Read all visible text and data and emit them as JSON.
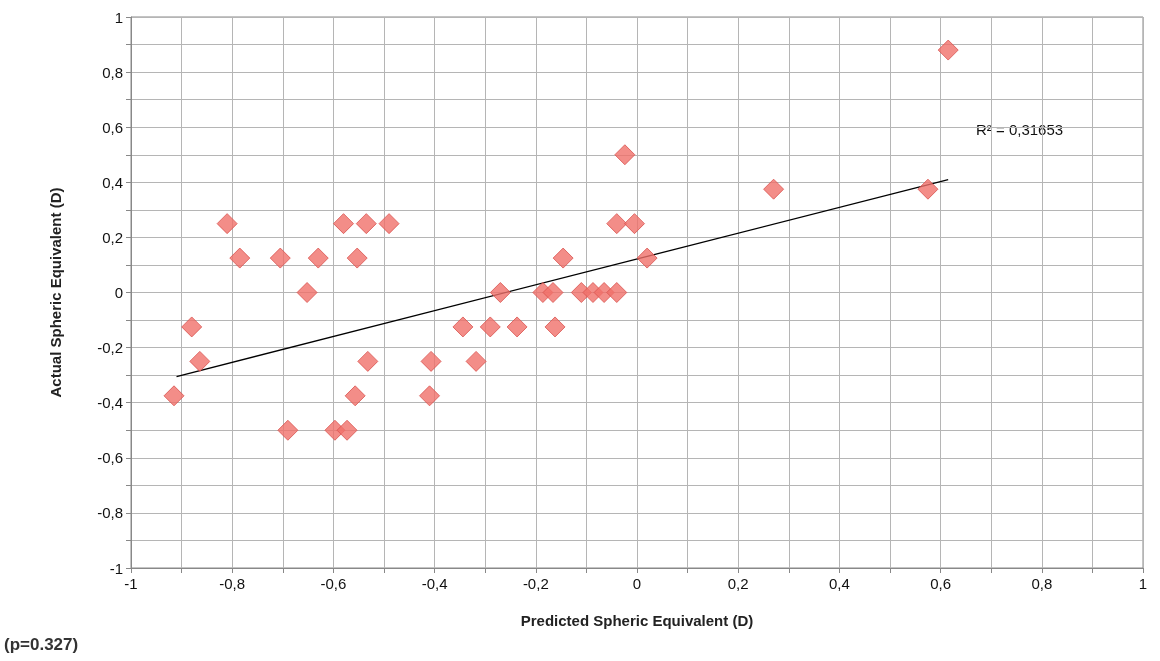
{
  "chart_data": {
    "type": "scatter",
    "xlabel": "Predicted Spheric Equivalent (D)",
    "ylabel": "Actual Spheric Equivalent (D)",
    "xlim": [
      -1,
      1
    ],
    "ylim": [
      -1,
      1
    ],
    "xticks": [
      -1,
      {
        "value": -0.9,
        "label": null
      },
      {
        "value": -0.8,
        "label": "-0,8"
      },
      {
        "value": -0.7,
        "label": null
      },
      {
        "value": -0.6,
        "label": "-0,6"
      },
      {
        "value": -0.5,
        "label": null
      },
      {
        "value": -0.4,
        "label": "-0,4"
      },
      {
        "value": -0.3,
        "label": null
      },
      {
        "value": -0.2,
        "label": "-0,2"
      },
      {
        "value": -0.1,
        "label": null
      },
      0,
      {
        "value": 0.1,
        "label": null
      },
      {
        "value": 0.2,
        "label": "0,2"
      },
      {
        "value": 0.3,
        "label": null
      },
      {
        "value": 0.4,
        "label": "0,4"
      },
      {
        "value": 0.5,
        "label": null
      },
      {
        "value": 0.6,
        "label": "0,6"
      },
      {
        "value": 0.7,
        "label": null
      },
      {
        "value": 0.8,
        "label": "0,8"
      },
      {
        "value": 0.9,
        "label": null
      },
      1
    ],
    "yticks": [
      -1,
      {
        "value": -0.9,
        "label": null
      },
      {
        "value": -0.8,
        "label": "-0,8"
      },
      {
        "value": -0.7,
        "label": null
      },
      {
        "value": -0.6,
        "label": "-0,6"
      },
      {
        "value": -0.5,
        "label": null
      },
      {
        "value": -0.4,
        "label": "-0,4"
      },
      {
        "value": -0.3,
        "label": null
      },
      {
        "value": -0.2,
        "label": "-0,2"
      },
      {
        "value": -0.1,
        "label": null
      },
      0,
      {
        "value": 0.1,
        "label": null
      },
      {
        "value": 0.2,
        "label": "0,2"
      },
      {
        "value": 0.3,
        "label": null
      },
      {
        "value": 0.4,
        "label": "0,4"
      },
      {
        "value": 0.5,
        "label": null
      },
      {
        "value": 0.6,
        "label": "0,6"
      },
      {
        "value": 0.7,
        "label": null
      },
      {
        "value": 0.8,
        "label": "0,8"
      },
      {
        "value": 0.9,
        "label": null
      },
      1
    ],
    "grid": true,
    "marker": "diamond",
    "series": [
      {
        "color": "#f0706a",
        "x": [
          0.615,
          -0.024,
          0.27,
          0.575,
          -0.81,
          -0.58,
          -0.535,
          -0.49,
          -0.04,
          -0.005,
          -0.785,
          -0.705,
          -0.63,
          -0.553,
          -0.146,
          0.02,
          -0.652,
          -0.27,
          -0.186,
          -0.166,
          -0.11,
          -0.087,
          -0.065,
          -0.04,
          -0.88,
          -0.344,
          -0.29,
          -0.237,
          -0.162,
          -0.864,
          -0.532,
          -0.407,
          -0.318,
          -0.915,
          -0.557,
          -0.41,
          -0.69,
          -0.597,
          -0.573
        ],
        "values": [
          0.88,
          0.5,
          0.375,
          0.375,
          0.25,
          0.25,
          0.25,
          0.25,
          0.25,
          0.25,
          0.125,
          0.125,
          0.125,
          0.125,
          0.125,
          0.125,
          0,
          0,
          0,
          0,
          0,
          0,
          0,
          0,
          -0.125,
          -0.125,
          -0.125,
          -0.125,
          -0.125,
          -0.25,
          -0.25,
          -0.25,
          -0.25,
          -0.375,
          -0.375,
          -0.375,
          -0.5,
          -0.5,
          -0.5
        ]
      },
      {
        "type": "line",
        "color": "#000000",
        "marker": "none",
        "x": [
          -0.91,
          0.615
        ],
        "values": [
          -0.305,
          0.41
        ]
      }
    ],
    "annotations": [
      "R² = 0,31653",
      "(p=0.327)"
    ]
  }
}
